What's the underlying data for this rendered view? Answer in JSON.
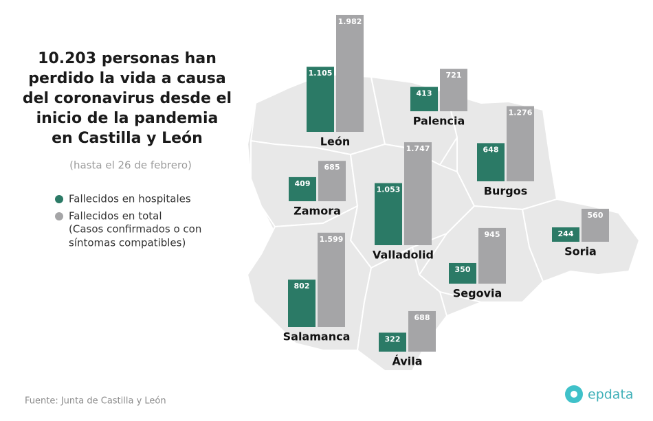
{
  "chart_data": {
    "type": "bar",
    "title": [
      "10.203 personas han",
      "perdido la vida a causa",
      "del coronavirus desde el",
      "inicio de la pandemia",
      "en Castilla y León"
    ],
    "subtitle": "(hasta el 26 de febrero)",
    "categories": [
      "León",
      "Palencia",
      "Burgos",
      "Zamora",
      "Valladolid",
      "Soria",
      "Segovia",
      "Salamanca",
      "Ávila"
    ],
    "series": [
      {
        "name": "Fallecidos en hospitales",
        "color": "#2b7a66",
        "values": [
          1105,
          413,
          648,
          409,
          1053,
          244,
          350,
          802,
          322
        ],
        "value_labels": [
          "1.105",
          "413",
          "648",
          "409",
          "1.053",
          "244",
          "350",
          "802",
          "322"
        ]
      },
      {
        "name": "Fallecidos en total",
        "color": "#a5a5a7",
        "values": [
          1982,
          721,
          1276,
          685,
          1747,
          560,
          945,
          1599,
          688
        ],
        "value_labels": [
          "1.982",
          "721",
          "1.276",
          "685",
          "1.747",
          "560",
          "945",
          "1.599",
          "688"
        ]
      }
    ],
    "legend_note": [
      "(Casos confirmados o con",
      "síntomas compatibles)"
    ],
    "source": "Fuente: Junta de Castilla y León",
    "brand": "epdata"
  }
}
